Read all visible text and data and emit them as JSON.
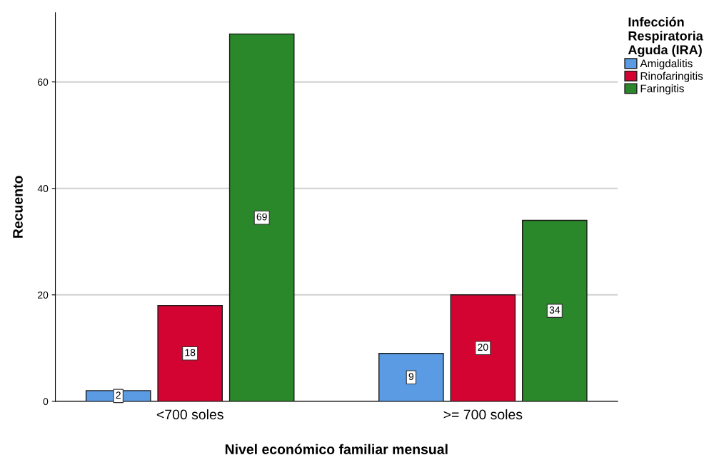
{
  "chart_data": {
    "type": "bar",
    "xlabel": "Nivel económico familiar mensual",
    "ylabel": "Recuento",
    "legend_title": "Infección\nRespiratoria\nAguda (IRA)",
    "categories": [
      "<700 soles",
      ">= 700 soles"
    ],
    "series": [
      {
        "name": "Amigdalitis",
        "color": "#5a9be3",
        "values": [
          2,
          9
        ]
      },
      {
        "name": "Rinofaringitis",
        "color": "#d30431",
        "values": [
          18,
          20
        ]
      },
      {
        "name": "Faringitis",
        "color": "#2a882a",
        "values": [
          69,
          34
        ]
      }
    ],
    "ylim": [
      0,
      73
    ],
    "yticks": [
      0,
      20,
      40,
      60
    ],
    "grid": "y",
    "legend": "top right",
    "data_labels": true
  }
}
